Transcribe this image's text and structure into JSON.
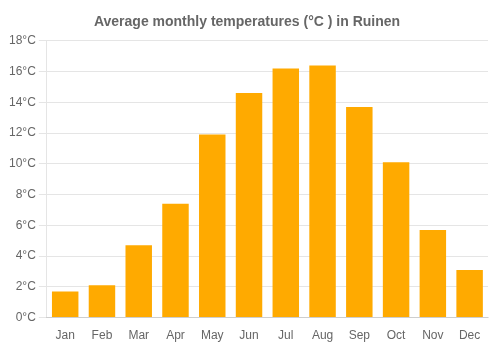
{
  "chart_data": {
    "type": "bar",
    "title": "Average monthly temperatures (°C ) in Ruinen",
    "categories": [
      "Jan",
      "Feb",
      "Mar",
      "Apr",
      "May",
      "Jun",
      "Jul",
      "Aug",
      "Sep",
      "Oct",
      "Nov",
      "Dec"
    ],
    "values": [
      1.7,
      2.1,
      4.7,
      7.4,
      11.9,
      14.6,
      16.2,
      16.4,
      13.7,
      10.1,
      5.7,
      3.1
    ],
    "color": "#FFAA00",
    "ylim": [
      0,
      18
    ],
    "yticks": [
      {
        "value": 0,
        "label": "0°C"
      },
      {
        "value": 2,
        "label": "2°C"
      },
      {
        "value": 4,
        "label": "4°C"
      },
      {
        "value": 6,
        "label": "6°C"
      },
      {
        "value": 8,
        "label": "8°C"
      },
      {
        "value": 10,
        "label": "10°C"
      },
      {
        "value": 12,
        "label": "12°C"
      },
      {
        "value": 14,
        "label": "14°C"
      },
      {
        "value": 16,
        "label": "16°C"
      },
      {
        "value": 18,
        "label": "18°C"
      }
    ],
    "grid": true
  }
}
